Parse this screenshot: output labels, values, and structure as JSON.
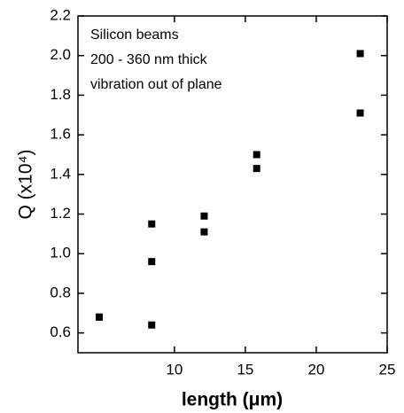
{
  "chart_data": {
    "type": "scatter",
    "annotations": [
      "Silicon beams",
      "200 - 360 nm thick",
      "vibration out of plane"
    ],
    "xlabel": "length (μm)",
    "ylabel": "Q (x10⁴)",
    "x": [
      4.7,
      4.7,
      8.4,
      8.4,
      8.4,
      12.1,
      12.1,
      15.8,
      15.8,
      23.1,
      23.1
    ],
    "series": [
      {
        "name": null,
        "color": "#000000",
        "values": [
          0.68,
          0.68,
          0.64,
          0.96,
          1.15,
          1.11,
          1.19,
          1.43,
          1.5,
          1.71,
          2.01
        ]
      }
    ],
    "xlim": [
      3.2,
      25
    ],
    "xticks": [
      10,
      15,
      20,
      25
    ],
    "ylim": [
      0.5,
      2.2
    ],
    "yticks": [
      0.6,
      0.8,
      {
        "value": 1.0,
        "label": "1.0"
      },
      1.2,
      1.4,
      1.6,
      1.8,
      {
        "value": 2.0,
        "label": "2.0"
      },
      2.2
    ]
  }
}
